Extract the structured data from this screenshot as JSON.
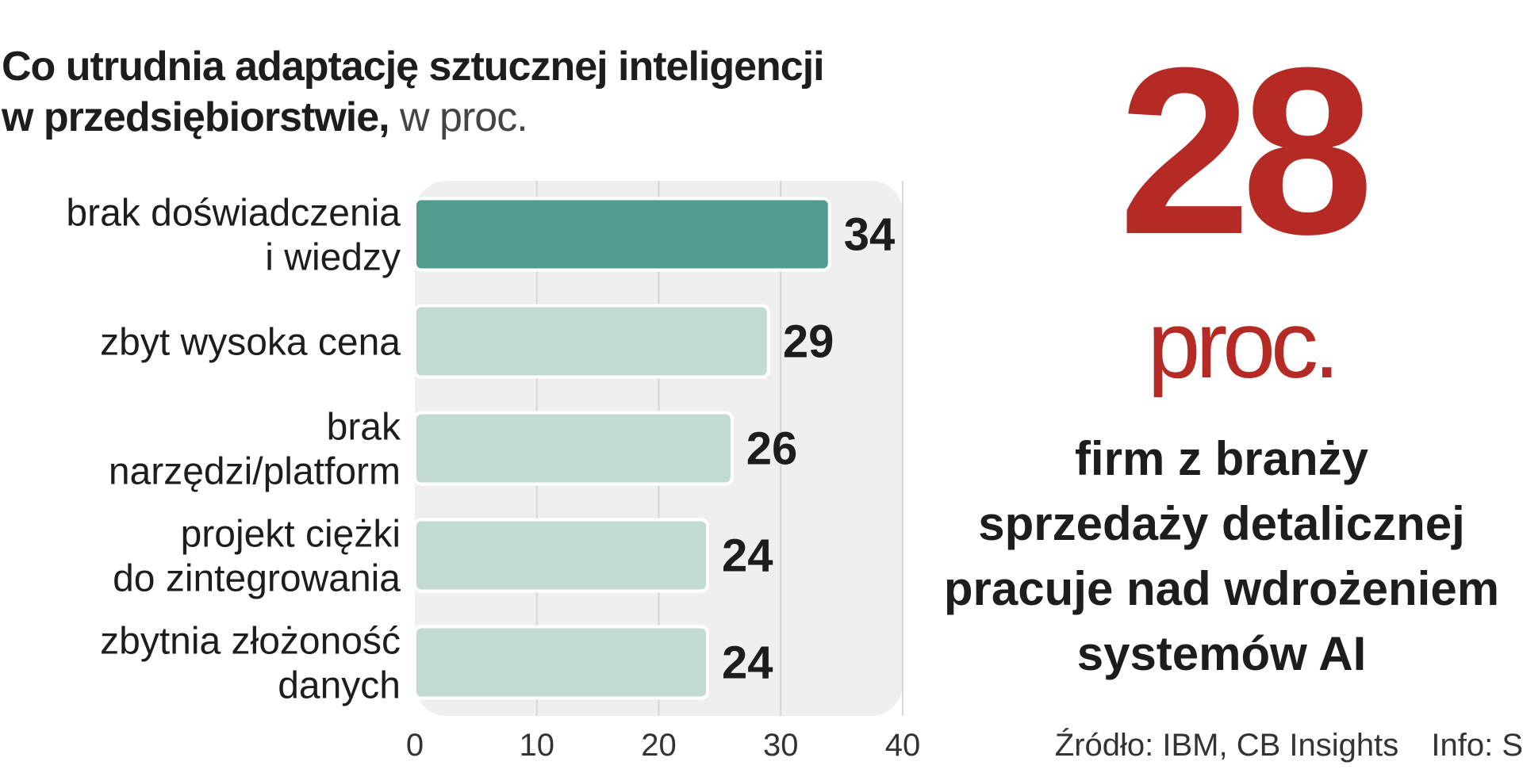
{
  "chart_data": {
    "type": "bar",
    "orientation": "horizontal",
    "title_line1": "Co utrudnia adaptację sztucznej inteligencji",
    "title_line2": "w przedsiębiorstwie,",
    "title_unit": "w proc.",
    "categories": [
      [
        "brak doświadczenia",
        "i wiedzy"
      ],
      [
        "zbyt wysoka cena"
      ],
      [
        "brak",
        "narzędzi/platform"
      ],
      [
        "projekt ciężki",
        "do zintegrowania"
      ],
      [
        "zbytnia złożoność",
        "danych"
      ]
    ],
    "values": [
      34,
      29,
      26,
      24,
      24
    ],
    "xlim": [
      0,
      40
    ],
    "xticks": [
      0,
      10,
      20,
      30,
      40
    ],
    "grid": true,
    "colors": {
      "highlight_bar": "#529b8f",
      "bar": "#c1dbd3",
      "plot_background": "#efefef",
      "grid": "#d6d6d6"
    }
  },
  "highlight": {
    "number": "28",
    "unit": "proc.",
    "text_lines": [
      "firm z branży",
      "sprzedaży detalicznej",
      "pracuje nad wdrożeniem",
      "systemów AI"
    ],
    "color": "#b52a24"
  },
  "footer": {
    "source": "Źródło: IBM, CB Insights",
    "info": "Info: S"
  }
}
